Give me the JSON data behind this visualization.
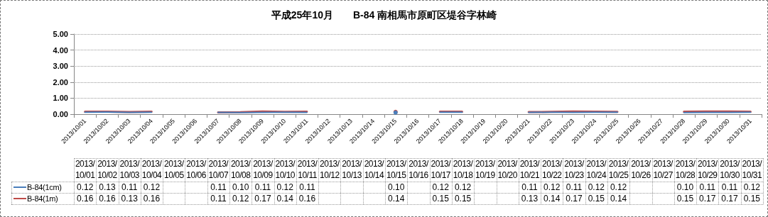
{
  "chart_data": {
    "type": "line",
    "title": "平成25年10月　　B-84 南相馬市原町区堤谷字林崎",
    "categories": [
      "2013/10/01",
      "2013/10/02",
      "2013/10/03",
      "2013/10/04",
      "2013/10/05",
      "2013/10/06",
      "2013/10/07",
      "2013/10/08",
      "2013/10/09",
      "2013/10/10",
      "2013/10/11",
      "2013/10/12",
      "2013/10/13",
      "2013/10/14",
      "2013/10/15",
      "2013/10/16",
      "2013/10/17",
      "2013/10/18",
      "2013/10/19",
      "2013/10/20",
      "2013/10/21",
      "2013/10/22",
      "2013/10/23",
      "2013/10/24",
      "2013/10/25",
      "2013/10/26",
      "2013/10/27",
      "2013/10/28",
      "2013/10/29",
      "2013/10/30",
      "2013/10/31"
    ],
    "series": [
      {
        "name": "B-84(1cm)",
        "color": "#4a7ebb",
        "values": [
          0.12,
          0.13,
          0.11,
          0.12,
          null,
          null,
          0.11,
          0.1,
          0.11,
          0.12,
          0.11,
          null,
          null,
          null,
          0.1,
          null,
          0.12,
          0.12,
          null,
          null,
          0.11,
          0.12,
          0.11,
          0.12,
          0.12,
          null,
          null,
          0.1,
          0.11,
          0.11,
          0.12
        ],
        "value_labels": [
          "0.12",
          "0.13",
          "0.11",
          "0.12",
          null,
          null,
          "0.11",
          "0.10",
          "0.11",
          "0.12",
          "0.11",
          null,
          null,
          null,
          "0.10",
          null,
          "0.12",
          "0.12",
          null,
          null,
          "0.11",
          "0.12",
          "0.11",
          "0.12",
          "0.12",
          null,
          null,
          "0.10",
          "0.11",
          "0.11",
          "0.12"
        ]
      },
      {
        "name": "B-84(1m)",
        "color": "#be4b48",
        "values": [
          0.16,
          0.16,
          0.13,
          0.16,
          null,
          null,
          0.11,
          0.12,
          0.17,
          0.14,
          0.16,
          null,
          null,
          null,
          0.14,
          null,
          0.15,
          0.15,
          null,
          null,
          0.13,
          0.14,
          0.17,
          0.15,
          0.14,
          null,
          null,
          0.15,
          0.17,
          0.17,
          0.15
        ],
        "value_labels": [
          "0.16",
          "0.16",
          "0.13",
          "0.16",
          null,
          null,
          "0.11",
          "0.12",
          "0.17",
          "0.14",
          "0.16",
          null,
          null,
          null,
          "0.14",
          null,
          "0.15",
          "0.15",
          null,
          null,
          "0.13",
          "0.14",
          "0.17",
          "0.15",
          "0.14",
          null,
          null,
          "0.15",
          "0.17",
          "0.17",
          "0.15"
        ]
      }
    ],
    "ylim": [
      0,
      5
    ],
    "yticks": [
      {
        "value": 0,
        "label": "0.00"
      },
      {
        "value": 1,
        "label": "1.00"
      },
      {
        "value": 2,
        "label": "2.00"
      },
      {
        "value": 3,
        "label": "3.00"
      },
      {
        "value": 4,
        "label": "4.00"
      },
      {
        "value": 5,
        "label": "5.00"
      }
    ],
    "grid": "y",
    "legend": "bottom",
    "marker": "none"
  }
}
